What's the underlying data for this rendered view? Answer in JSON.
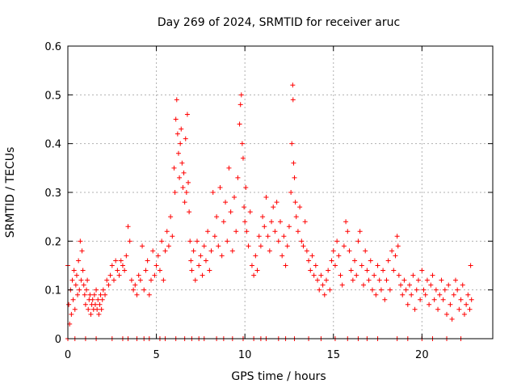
{
  "chart_data": {
    "type": "scatter",
    "title": "Day 269 of 2024, SRMTID for receiver aruc",
    "xlabel": "GPS time / hours",
    "ylabel": "SRMTID / TECUs",
    "xlim": [
      0,
      24
    ],
    "ylim": [
      0,
      0.6
    ],
    "x_ticks": [
      0,
      5,
      10,
      15,
      20
    ],
    "x_tick_labels": [
      "0",
      "5",
      "10",
      "15",
      "20"
    ],
    "y_ticks": [
      0,
      0.1,
      0.2,
      0.3,
      0.4,
      0.5,
      0.6
    ],
    "y_tick_labels": [
      "0",
      "0.1",
      "0.2",
      "0.3",
      "0.4",
      "0.5",
      "0.6"
    ],
    "grid": true,
    "marker": "+",
    "colors": {
      "points": "#ff0000",
      "grid": "#b0b0b0",
      "axes": "#000000"
    },
    "series": [
      {
        "name": "SRMTID",
        "points": [
          [
            0.0,
            0.15
          ],
          [
            0.05,
            0.07
          ],
          [
            0.1,
            0.03
          ],
          [
            0.15,
            0.1
          ],
          [
            0.2,
            0.05
          ],
          [
            0.25,
            0.12
          ],
          [
            0.3,
            0.08
          ],
          [
            0.35,
            0.14
          ],
          [
            0.4,
            0.06
          ],
          [
            0.45,
            0.11
          ],
          [
            0.5,
            0.13
          ],
          [
            0.55,
            0.09
          ],
          [
            0.6,
            0.16
          ],
          [
            0.65,
            0.1
          ],
          [
            0.7,
            0.2
          ],
          [
            0.75,
            0.12
          ],
          [
            0.8,
            0.18
          ],
          [
            0.85,
            0.14
          ],
          [
            0.9,
            0.11
          ],
          [
            0.95,
            0.09
          ],
          [
            1.0,
            0.07
          ],
          [
            1.05,
            0.1
          ],
          [
            1.1,
            0.12
          ],
          [
            1.15,
            0.06
          ],
          [
            1.2,
            0.08
          ],
          [
            1.25,
            0.09
          ],
          [
            1.3,
            0.05
          ],
          [
            1.35,
            0.07
          ],
          [
            1.4,
            0.08
          ],
          [
            1.45,
            0.06
          ],
          [
            1.5,
            0.09
          ],
          [
            1.55,
            0.07
          ],
          [
            1.6,
            0.1
          ],
          [
            1.65,
            0.06
          ],
          [
            1.7,
            0.08
          ],
          [
            1.75,
            0.05
          ],
          [
            1.8,
            0.07
          ],
          [
            1.85,
            0.09
          ],
          [
            1.9,
            0.06
          ],
          [
            1.95,
            0.08
          ],
          [
            2.0,
            0.1
          ],
          [
            2.1,
            0.09
          ],
          [
            2.2,
            0.12
          ],
          [
            2.3,
            0.11
          ],
          [
            2.4,
            0.13
          ],
          [
            2.5,
            0.15
          ],
          [
            2.6,
            0.12
          ],
          [
            2.7,
            0.16
          ],
          [
            2.8,
            0.14
          ],
          [
            2.9,
            0.13
          ],
          [
            3.0,
            0.16
          ],
          [
            3.1,
            0.15
          ],
          [
            3.2,
            0.14
          ],
          [
            3.3,
            0.17
          ],
          [
            3.4,
            0.23
          ],
          [
            3.5,
            0.2
          ],
          [
            3.6,
            0.12
          ],
          [
            3.7,
            0.1
          ],
          [
            3.8,
            0.11
          ],
          [
            3.9,
            0.09
          ],
          [
            4.0,
            0.13
          ],
          [
            4.1,
            0.12
          ],
          [
            4.2,
            0.19
          ],
          [
            4.3,
            0.1
          ],
          [
            4.4,
            0.14
          ],
          [
            4.5,
            0.16
          ],
          [
            4.6,
            0.09
          ],
          [
            4.7,
            0.12
          ],
          [
            4.8,
            0.18
          ],
          [
            4.9,
            0.13
          ],
          [
            5.0,
            0.15
          ],
          [
            5.1,
            0.17
          ],
          [
            5.2,
            0.14
          ],
          [
            5.3,
            0.2
          ],
          [
            5.4,
            0.12
          ],
          [
            5.5,
            0.18
          ],
          [
            5.6,
            0.22
          ],
          [
            5.7,
            0.19
          ],
          [
            5.8,
            0.25
          ],
          [
            5.9,
            0.21
          ],
          [
            6.0,
            0.35
          ],
          [
            6.05,
            0.3
          ],
          [
            6.1,
            0.45
          ],
          [
            6.15,
            0.49
          ],
          [
            6.2,
            0.42
          ],
          [
            6.25,
            0.38
          ],
          [
            6.3,
            0.33
          ],
          [
            6.35,
            0.4
          ],
          [
            6.4,
            0.43
          ],
          [
            6.45,
            0.36
          ],
          [
            6.5,
            0.31
          ],
          [
            6.55,
            0.34
          ],
          [
            6.6,
            0.28
          ],
          [
            6.65,
            0.41
          ],
          [
            6.7,
            0.3
          ],
          [
            6.75,
            0.46
          ],
          [
            6.8,
            0.32
          ],
          [
            6.85,
            0.26
          ],
          [
            6.9,
            0.2
          ],
          [
            6.95,
            0.16
          ],
          [
            7.0,
            0.14
          ],
          [
            7.1,
            0.18
          ],
          [
            7.2,
            0.12
          ],
          [
            7.3,
            0.2
          ],
          [
            7.4,
            0.15
          ],
          [
            7.5,
            0.17
          ],
          [
            7.6,
            0.13
          ],
          [
            7.7,
            0.19
          ],
          [
            7.8,
            0.16
          ],
          [
            7.9,
            0.22
          ],
          [
            8.0,
            0.14
          ],
          [
            8.1,
            0.18
          ],
          [
            8.2,
            0.3
          ],
          [
            8.3,
            0.21
          ],
          [
            8.4,
            0.25
          ],
          [
            8.5,
            0.19
          ],
          [
            8.6,
            0.31
          ],
          [
            8.7,
            0.17
          ],
          [
            8.8,
            0.24
          ],
          [
            8.9,
            0.28
          ],
          [
            9.0,
            0.2
          ],
          [
            9.1,
            0.35
          ],
          [
            9.2,
            0.26
          ],
          [
            9.3,
            0.18
          ],
          [
            9.4,
            0.29
          ],
          [
            9.5,
            0.22
          ],
          [
            9.6,
            0.33
          ],
          [
            9.7,
            0.44
          ],
          [
            9.75,
            0.48
          ],
          [
            9.8,
            0.5
          ],
          [
            9.85,
            0.4
          ],
          [
            9.9,
            0.37
          ],
          [
            9.95,
            0.27
          ],
          [
            10.0,
            0.24
          ],
          [
            10.05,
            0.31
          ],
          [
            10.1,
            0.22
          ],
          [
            10.2,
            0.19
          ],
          [
            10.3,
            0.26
          ],
          [
            10.4,
            0.15
          ],
          [
            10.5,
            0.13
          ],
          [
            10.6,
            0.17
          ],
          [
            10.7,
            0.14
          ],
          [
            10.8,
            0.21
          ],
          [
            10.9,
            0.19
          ],
          [
            11.0,
            0.25
          ],
          [
            11.1,
            0.23
          ],
          [
            11.2,
            0.29
          ],
          [
            11.3,
            0.21
          ],
          [
            11.4,
            0.18
          ],
          [
            11.5,
            0.24
          ],
          [
            11.6,
            0.27
          ],
          [
            11.7,
            0.22
          ],
          [
            11.8,
            0.28
          ],
          [
            11.9,
            0.2
          ],
          [
            12.0,
            0.24
          ],
          [
            12.1,
            0.17
          ],
          [
            12.2,
            0.21
          ],
          [
            12.3,
            0.15
          ],
          [
            12.4,
            0.19
          ],
          [
            12.5,
            0.23
          ],
          [
            12.6,
            0.3
          ],
          [
            12.65,
            0.4
          ],
          [
            12.7,
            0.52
          ],
          [
            12.72,
            0.49
          ],
          [
            12.75,
            0.36
          ],
          [
            12.8,
            0.33
          ],
          [
            12.85,
            0.28
          ],
          [
            12.9,
            0.25
          ],
          [
            13.0,
            0.22
          ],
          [
            13.1,
            0.27
          ],
          [
            13.2,
            0.2
          ],
          [
            13.3,
            0.19
          ],
          [
            13.4,
            0.24
          ],
          [
            13.5,
            0.18
          ],
          [
            13.6,
            0.16
          ],
          [
            13.7,
            0.14
          ],
          [
            13.8,
            0.17
          ],
          [
            13.9,
            0.13
          ],
          [
            14.0,
            0.15
          ],
          [
            14.1,
            0.12
          ],
          [
            14.2,
            0.1
          ],
          [
            14.3,
            0.13
          ],
          [
            14.4,
            0.11
          ],
          [
            14.5,
            0.09
          ],
          [
            14.6,
            0.12
          ],
          [
            14.7,
            0.14
          ],
          [
            14.8,
            0.1
          ],
          [
            14.9,
            0.16
          ],
          [
            15.0,
            0.18
          ],
          [
            15.1,
            0.15
          ],
          [
            15.2,
            0.2
          ],
          [
            15.3,
            0.17
          ],
          [
            15.4,
            0.13
          ],
          [
            15.5,
            0.11
          ],
          [
            15.6,
            0.19
          ],
          [
            15.7,
            0.24
          ],
          [
            15.8,
            0.22
          ],
          [
            15.9,
            0.18
          ],
          [
            16.0,
            0.14
          ],
          [
            16.1,
            0.12
          ],
          [
            16.2,
            0.16
          ],
          [
            16.3,
            0.13
          ],
          [
            16.4,
            0.2
          ],
          [
            16.5,
            0.22
          ],
          [
            16.6,
            0.15
          ],
          [
            16.7,
            0.11
          ],
          [
            16.8,
            0.18
          ],
          [
            16.9,
            0.14
          ],
          [
            17.0,
            0.12
          ],
          [
            17.1,
            0.16
          ],
          [
            17.2,
            0.1
          ],
          [
            17.3,
            0.13
          ],
          [
            17.4,
            0.09
          ],
          [
            17.5,
            0.15
          ],
          [
            17.6,
            0.12
          ],
          [
            17.7,
            0.1
          ],
          [
            17.8,
            0.14
          ],
          [
            17.9,
            0.08
          ],
          [
            18.0,
            0.12
          ],
          [
            18.1,
            0.16
          ],
          [
            18.2,
            0.1
          ],
          [
            18.3,
            0.18
          ],
          [
            18.4,
            0.14
          ],
          [
            18.5,
            0.17
          ],
          [
            18.6,
            0.21
          ],
          [
            18.65,
            0.19
          ],
          [
            18.7,
            0.13
          ],
          [
            18.8,
            0.11
          ],
          [
            18.9,
            0.09
          ],
          [
            19.0,
            0.12
          ],
          [
            19.1,
            0.1
          ],
          [
            19.2,
            0.07
          ],
          [
            19.3,
            0.11
          ],
          [
            19.4,
            0.09
          ],
          [
            19.5,
            0.13
          ],
          [
            19.6,
            0.06
          ],
          [
            19.7,
            0.1
          ],
          [
            19.8,
            0.12
          ],
          [
            19.9,
            0.08
          ],
          [
            20.0,
            0.14
          ],
          [
            20.1,
            0.1
          ],
          [
            20.2,
            0.09
          ],
          [
            20.3,
            0.12
          ],
          [
            20.4,
            0.07
          ],
          [
            20.5,
            0.11
          ],
          [
            20.6,
            0.13
          ],
          [
            20.7,
            0.08
          ],
          [
            20.8,
            0.1
          ],
          [
            20.9,
            0.06
          ],
          [
            21.0,
            0.09
          ],
          [
            21.1,
            0.12
          ],
          [
            21.2,
            0.08
          ],
          [
            21.3,
            0.1
          ],
          [
            21.4,
            0.05
          ],
          [
            21.5,
            0.11
          ],
          [
            21.6,
            0.07
          ],
          [
            21.7,
            0.04
          ],
          [
            21.8,
            0.09
          ],
          [
            21.9,
            0.12
          ],
          [
            22.0,
            0.1
          ],
          [
            22.1,
            0.06
          ],
          [
            22.2,
            0.08
          ],
          [
            22.3,
            0.11
          ],
          [
            22.4,
            0.05
          ],
          [
            22.5,
            0.07
          ],
          [
            22.6,
            0.09
          ],
          [
            22.7,
            0.06
          ],
          [
            22.75,
            0.15
          ],
          [
            22.8,
            0.08
          ],
          [
            0.0,
            0.0
          ],
          [
            0.4,
            0.0
          ],
          [
            1.0,
            0.0
          ],
          [
            1.6,
            0.0
          ],
          [
            2.5,
            0.0
          ],
          [
            3.1,
            0.0
          ],
          [
            3.4,
            0.0
          ],
          [
            3.9,
            0.0
          ],
          [
            4.3,
            0.0
          ],
          [
            4.6,
            0.0
          ],
          [
            5.2,
            0.0
          ],
          [
            5.5,
            0.0
          ],
          [
            6.1,
            0.0
          ],
          [
            6.6,
            0.0
          ],
          [
            7.0,
            0.0
          ],
          [
            7.4,
            0.0
          ],
          [
            7.7,
            0.0
          ],
          [
            8.4,
            0.0
          ],
          [
            8.8,
            0.0
          ],
          [
            9.3,
            0.0
          ],
          [
            9.9,
            0.0
          ],
          [
            10.5,
            0.0
          ],
          [
            10.9,
            0.0
          ],
          [
            11.2,
            0.0
          ],
          [
            11.9,
            0.0
          ],
          [
            12.3,
            0.0
          ],
          [
            12.8,
            0.0
          ],
          [
            13.6,
            0.0
          ],
          [
            14.3,
            0.0
          ],
          [
            15.1,
            0.0
          ],
          [
            15.8,
            0.0
          ],
          [
            16.4,
            0.0
          ],
          [
            16.9,
            0.0
          ],
          [
            17.5,
            0.0
          ],
          [
            18.6,
            0.0
          ],
          [
            19.2,
            0.0
          ],
          [
            20.0,
            0.0
          ],
          [
            20.6,
            0.0
          ],
          [
            21.4,
            0.0
          ],
          [
            22.2,
            0.0
          ]
        ]
      }
    ]
  }
}
